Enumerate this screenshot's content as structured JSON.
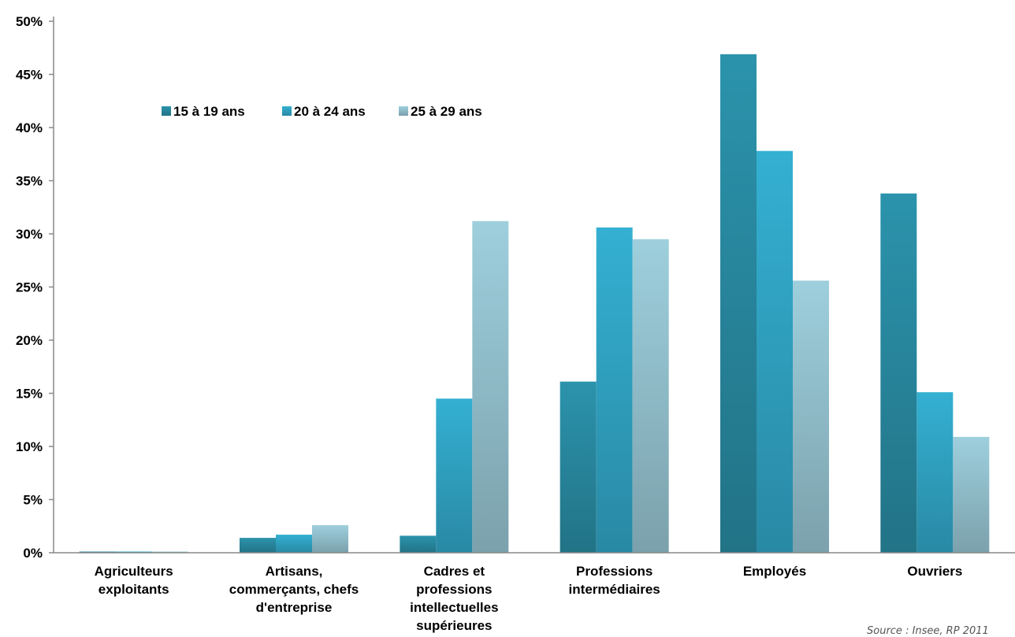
{
  "chart_data": {
    "type": "bar",
    "categories": [
      [
        "Agriculteurs",
        "exploitants"
      ],
      [
        "Artisans,",
        "commerçants, chefs",
        "d'entreprise"
      ],
      [
        "Cadres et",
        "professions",
        "intellectuelles",
        "supérieures"
      ],
      [
        "Professions",
        "intermédiaires"
      ],
      [
        "Employés"
      ],
      [
        "Ouvriers"
      ]
    ],
    "series": [
      {
        "name": "15 à 19 ans",
        "color": "#2b93ac",
        "values": [
          0.0,
          1.4,
          1.6,
          16.1,
          46.9,
          33.8
        ]
      },
      {
        "name": "20 à 24 ans",
        "color": "#34b0d2",
        "values": [
          0.0,
          1.7,
          14.5,
          30.6,
          37.8,
          15.1
        ]
      },
      {
        "name": "25 à 29 ans",
        "color": "#9ecfdd",
        "values": [
          0.0,
          2.6,
          31.2,
          29.5,
          25.6,
          10.9
        ]
      }
    ],
    "yticks": [
      "0%",
      "5%",
      "10%",
      "15%",
      "20%",
      "25%",
      "30%",
      "35%",
      "40%",
      "45%",
      "50%"
    ],
    "ylim": [
      0,
      50
    ],
    "legend_position": "top-left",
    "grid": false,
    "source": "Source : Insee, RP 2011"
  }
}
